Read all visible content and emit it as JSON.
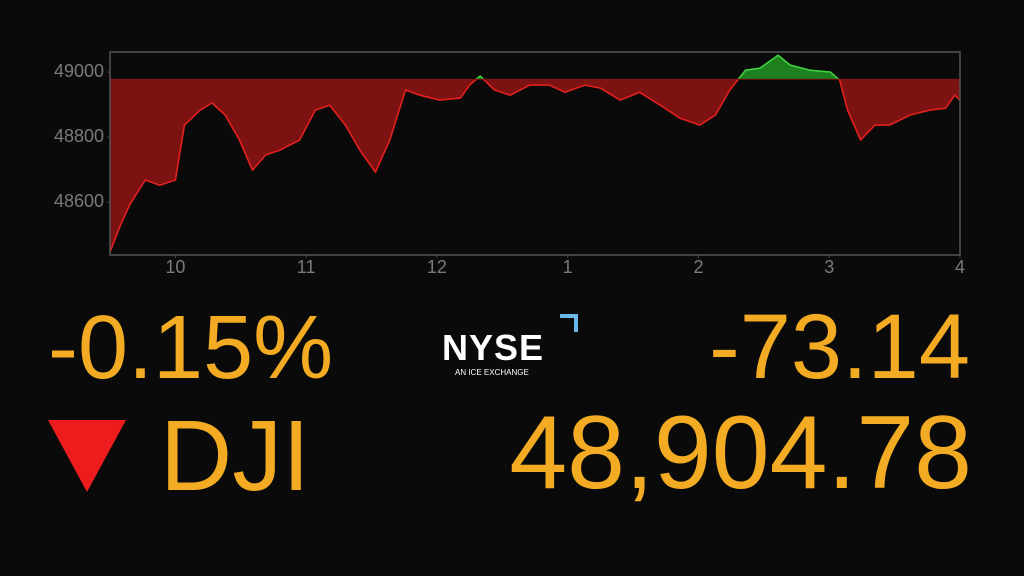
{
  "chart_data": {
    "type": "line",
    "x": [
      9.5,
      9.58,
      9.65,
      9.77,
      9.88,
      10.0,
      10.07,
      10.19,
      10.28,
      10.38,
      10.49,
      10.59,
      10.69,
      10.8,
      10.95,
      11.07,
      11.18,
      11.3,
      11.41,
      11.53,
      11.64,
      11.76,
      11.87,
      12.02,
      12.18,
      12.25,
      12.33,
      12.44,
      12.56,
      12.71,
      12.86,
      12.98,
      13.13,
      13.25,
      13.4,
      13.55,
      13.71,
      13.86,
      14.01,
      14.13,
      14.24,
      14.36,
      14.47,
      14.61,
      14.7,
      14.85,
      15.01,
      15.08,
      15.14,
      15.24,
      15.35,
      15.46,
      15.62,
      15.77,
      15.89,
      15.96,
      16.0
    ],
    "values": [
      48446,
      48529,
      48591,
      48668,
      48652,
      48668,
      48837,
      48883,
      48905,
      48868,
      48791,
      48698,
      48745,
      48760,
      48791,
      48883,
      48898,
      48837,
      48760,
      48692,
      48791,
      48945,
      48929,
      48914,
      48920,
      48960,
      48988,
      48945,
      48929,
      48960,
      48960,
      48938,
      48960,
      48951,
      48914,
      48938,
      48898,
      48858,
      48837,
      48868,
      48945,
      49006,
      49012,
      49052,
      49022,
      49006,
      49000,
      48975,
      48883,
      48791,
      48837,
      48837,
      48868,
      48883,
      48889,
      48929,
      48914
    ],
    "baseline": 48978,
    "color_up": "#3fcf3f",
    "color_down": "#e4201e",
    "fill_up": "#1d7f1d",
    "fill_down": "#7d1212",
    "xlim": [
      9.5,
      16
    ],
    "ylim": [
      48437,
      49062
    ],
    "xticks": [
      10,
      11,
      12,
      {
        "value": 13,
        "label": "1"
      },
      {
        "value": 14,
        "label": "2"
      },
      {
        "value": 15,
        "label": "3"
      },
      {
        "value": 16,
        "label": "4"
      }
    ],
    "yticks": [
      48600,
      48800,
      49000
    ],
    "grid": false
  },
  "quote": {
    "change_percent": "-0.15%",
    "change": "-73.14",
    "symbol": "DJI",
    "price": "48,904.78"
  },
  "logo": {
    "name": "NYSE",
    "tagline": "AN ICE EXCHANGE"
  }
}
